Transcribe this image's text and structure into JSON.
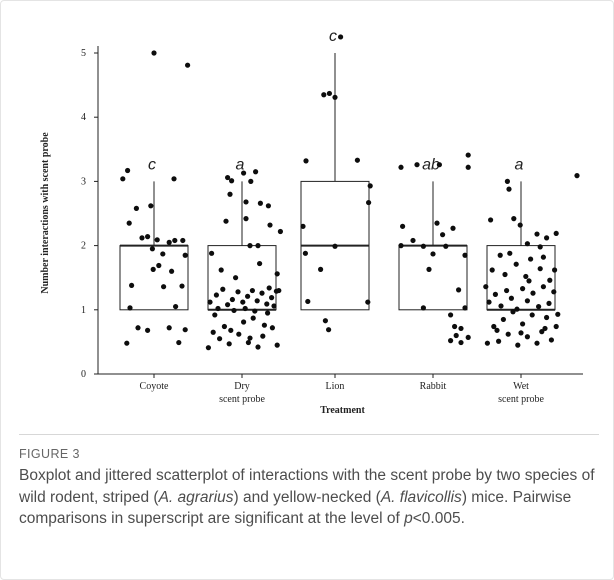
{
  "chart_data": {
    "type": "boxplot",
    "xlabel": "Treatment",
    "ylabel": "Number interactions with scent probe",
    "ylim": [
      0,
      5.5
    ],
    "yticks": [
      0,
      1,
      2,
      3,
      4,
      5
    ],
    "categories": [
      {
        "line1": "Coyote",
        "line2": ""
      },
      {
        "line1": "Dry",
        "line2": "scent probe"
      },
      {
        "line1": "Lion",
        "line2": ""
      },
      {
        "line1": "Rabbit",
        "line2": ""
      },
      {
        "line1": "Wet",
        "line2": "scent probe"
      }
    ],
    "boxes": [
      {
        "q1": 1,
        "median": 2,
        "q3": 2,
        "whisker_low": 1,
        "whisker_high": 3,
        "letter": "c"
      },
      {
        "q1": 1,
        "median": 1,
        "q3": 2,
        "whisker_low": 1,
        "whisker_high": 3,
        "letter": "a"
      },
      {
        "q1": 1,
        "median": 2,
        "q3": 3,
        "whisker_low": 1,
        "whisker_high": 5,
        "letter": "c"
      },
      {
        "q1": 1,
        "median": 2,
        "q3": 2,
        "whisker_low": 1,
        "whisker_high": 3,
        "letter": "ab"
      },
      {
        "q1": 1,
        "median": 1,
        "q3": 2,
        "whisker_low": 1,
        "whisker_high": 3,
        "letter": "a"
      }
    ],
    "jittered_points": [
      [
        [
          -0.33,
          3.17
        ],
        [
          -0.39,
          3.04
        ],
        [
          -0.22,
          2.58
        ],
        [
          0.0,
          5.0
        ],
        [
          0.42,
          4.81
        ],
        [
          0.25,
          3.04
        ],
        [
          -0.31,
          2.35
        ],
        [
          -0.04,
          2.62
        ],
        [
          -0.28,
          1.38
        ],
        [
          -0.3,
          1.03
        ],
        [
          -0.34,
          0.48
        ],
        [
          -0.2,
          0.72
        ],
        [
          -0.08,
          0.68
        ],
        [
          0.19,
          0.72
        ],
        [
          0.31,
          0.49
        ],
        [
          0.39,
          0.69
        ],
        [
          0.27,
          1.05
        ],
        [
          0.35,
          1.37
        ],
        [
          -0.02,
          1.95
        ],
        [
          -0.15,
          2.12
        ],
        [
          -0.08,
          2.14
        ],
        [
          0.04,
          2.09
        ],
        [
          0.11,
          1.87
        ],
        [
          0.19,
          2.05
        ],
        [
          0.26,
          2.08
        ],
        [
          0.36,
          2.08
        ],
        [
          0.39,
          1.85
        ],
        [
          0.06,
          1.69
        ],
        [
          -0.01,
          1.63
        ],
        [
          0.12,
          1.36
        ],
        [
          0.22,
          1.6
        ]
      ],
      [
        [
          -0.13,
          3.01
        ],
        [
          -0.18,
          3.06
        ],
        [
          0.17,
          3.15
        ],
        [
          0.02,
          3.13
        ],
        [
          0.11,
          3.0
        ],
        [
          0.8,
          3.32
        ],
        [
          -0.15,
          2.8
        ],
        [
          0.05,
          2.68
        ],
        [
          0.23,
          2.66
        ],
        [
          0.33,
          2.62
        ],
        [
          -0.2,
          2.38
        ],
        [
          0.05,
          2.42
        ],
        [
          0.35,
          2.32
        ],
        [
          0.48,
          2.22
        ],
        [
          0.1,
          2.0
        ],
        [
          0.2,
          2.0
        ],
        [
          -0.42,
          0.41
        ],
        [
          -0.34,
          0.92
        ],
        [
          -0.28,
          0.55
        ],
        [
          -0.22,
          0.74
        ],
        [
          -0.16,
          0.47
        ],
        [
          -0.1,
          0.99
        ],
        [
          -0.04,
          0.62
        ],
        [
          0.02,
          0.81
        ],
        [
          0.08,
          0.49
        ],
        [
          0.14,
          0.87
        ],
        [
          0.2,
          0.42
        ],
        [
          0.26,
          0.59
        ],
        [
          0.32,
          0.95
        ],
        [
          0.38,
          0.72
        ],
        [
          0.44,
          0.45
        ],
        [
          -0.4,
          1.12
        ],
        [
          -0.32,
          1.23
        ],
        [
          -0.24,
          1.32
        ],
        [
          -0.18,
          1.08
        ],
        [
          -0.12,
          1.16
        ],
        [
          -0.05,
          1.28
        ],
        [
          0.01,
          1.12
        ],
        [
          0.07,
          1.21
        ],
        [
          0.13,
          1.3
        ],
        [
          0.19,
          1.14
        ],
        [
          0.25,
          1.26
        ],
        [
          0.31,
          1.09
        ],
        [
          0.37,
          1.19
        ],
        [
          0.43,
          1.29
        ],
        [
          -0.36,
          0.65
        ],
        [
          -0.3,
          1.02
        ],
        [
          -0.14,
          0.68
        ],
        [
          0.04,
          1.02
        ],
        [
          0.1,
          0.56
        ],
        [
          0.16,
          0.98
        ],
        [
          0.28,
          0.76
        ],
        [
          0.34,
          1.34
        ],
        [
          0.4,
          1.06
        ],
        [
          -0.26,
          1.62
        ],
        [
          -0.08,
          1.5
        ],
        [
          0.22,
          1.72
        ],
        [
          0.44,
          1.56
        ],
        [
          -0.38,
          1.88
        ],
        [
          0.46,
          1.3
        ]
      ],
      [
        [
          -0.14,
          4.35
        ],
        [
          -0.07,
          4.37
        ],
        [
          0.0,
          4.31
        ],
        [
          0.07,
          5.25
        ],
        [
          0.28,
          3.33
        ],
        [
          0.44,
          2.93
        ],
        [
          0.42,
          2.67
        ],
        [
          -0.4,
          2.3
        ],
        [
          -0.37,
          1.88
        ],
        [
          -0.18,
          1.63
        ],
        [
          -0.34,
          1.13
        ],
        [
          -0.12,
          0.83
        ],
        [
          -0.08,
          0.69
        ],
        [
          0.0,
          1.99
        ],
        [
          0.41,
          1.12
        ]
      ],
      [
        [
          -0.4,
          3.22
        ],
        [
          -0.2,
          3.26
        ],
        [
          0.08,
          3.26
        ],
        [
          0.44,
          3.41
        ],
        [
          0.44,
          3.22
        ],
        [
          -0.38,
          2.3
        ],
        [
          0.05,
          2.35
        ],
        [
          0.25,
          2.27
        ],
        [
          -0.25,
          2.08
        ],
        [
          -0.12,
          1.99
        ],
        [
          0.0,
          1.87
        ],
        [
          0.12,
          2.17
        ],
        [
          0.4,
          1.85
        ],
        [
          -0.05,
          1.63
        ],
        [
          0.32,
          1.31
        ],
        [
          0.4,
          1.03
        ],
        [
          -0.12,
          1.03
        ],
        [
          0.22,
          0.92
        ],
        [
          0.27,
          0.74
        ],
        [
          0.35,
          0.71
        ],
        [
          0.44,
          0.57
        ],
        [
          0.22,
          0.52
        ],
        [
          0.35,
          0.49
        ],
        [
          0.29,
          0.6
        ],
        [
          -0.4,
          2.0
        ],
        [
          0.16,
          1.99
        ]
      ],
      [
        [
          -0.17,
          3.0
        ],
        [
          -0.15,
          2.88
        ],
        [
          0.7,
          3.09
        ],
        [
          -0.38,
          2.4
        ],
        [
          -0.09,
          2.42
        ],
        [
          -0.01,
          2.32
        ],
        [
          0.2,
          2.18
        ],
        [
          0.32,
          2.12
        ],
        [
          0.24,
          1.98
        ],
        [
          0.08,
          2.03
        ],
        [
          -0.26,
          1.85
        ],
        [
          0.12,
          1.79
        ],
        [
          0.42,
          1.62
        ],
        [
          0.44,
          2.19
        ],
        [
          -0.42,
          0.48
        ],
        [
          -0.34,
          0.74
        ],
        [
          -0.28,
          0.51
        ],
        [
          -0.22,
          0.85
        ],
        [
          -0.16,
          0.62
        ],
        [
          -0.1,
          0.97
        ],
        [
          -0.04,
          0.45
        ],
        [
          0.02,
          0.78
        ],
        [
          0.08,
          0.58
        ],
        [
          0.14,
          0.92
        ],
        [
          0.2,
          0.48
        ],
        [
          0.26,
          0.66
        ],
        [
          0.32,
          0.88
        ],
        [
          0.38,
          0.53
        ],
        [
          0.44,
          0.74
        ],
        [
          -0.4,
          1.12
        ],
        [
          -0.32,
          1.24
        ],
        [
          -0.25,
          1.06
        ],
        [
          -0.18,
          1.3
        ],
        [
          -0.12,
          1.18
        ],
        [
          -0.05,
          1.01
        ],
        [
          0.02,
          1.33
        ],
        [
          0.08,
          1.14
        ],
        [
          0.15,
          1.26
        ],
        [
          0.22,
          1.05
        ],
        [
          0.28,
          1.36
        ],
        [
          0.35,
          1.1
        ],
        [
          0.41,
          1.28
        ],
        [
          -0.36,
          1.62
        ],
        [
          -0.2,
          1.55
        ],
        [
          -0.06,
          1.71
        ],
        [
          0.06,
          1.52
        ],
        [
          0.24,
          1.64
        ],
        [
          0.36,
          1.46
        ],
        [
          -0.3,
          0.68
        ],
        [
          0.0,
          0.64
        ],
        [
          0.3,
          0.71
        ],
        [
          0.46,
          0.93
        ],
        [
          -0.44,
          1.36
        ],
        [
          0.1,
          1.45
        ],
        [
          -0.14,
          1.88
        ],
        [
          0.28,
          1.82
        ]
      ]
    ]
  },
  "caption": {
    "label": "FIGURE 3",
    "parts": [
      "Boxplot and jittered scatterplot of interactions with the scent probe by two species of wild rodent, striped (",
      "A. agrarius",
      ") and yellow-necked (",
      "A. flavicollis",
      ") mice. Pairwise comparisons in superscript are significant at the level of ",
      "p",
      "<0.005."
    ]
  }
}
